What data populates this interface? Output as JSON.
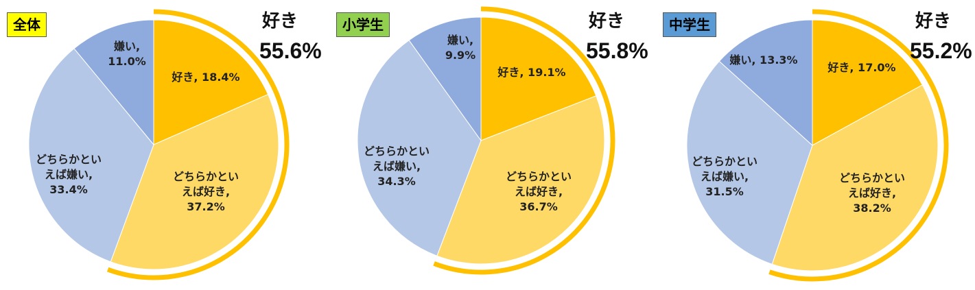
{
  "colors": {
    "like": "#FFC000",
    "somewhat_like": "#FFD966",
    "somewhat_dislike": "#B4C7E7",
    "dislike": "#8FAADC",
    "ring": "#FFC000"
  },
  "chart_data": [
    {
      "type": "pie",
      "badge": "全体",
      "badge_color": "#FFFF00",
      "like_heading": "好き",
      "like_total": "55.6%",
      "slices": [
        {
          "label_lines": [
            "好き, 18.4%"
          ],
          "value": 18.4,
          "color_key": "like"
        },
        {
          "label_lines": [
            "どちらかとい",
            "えば好き,",
            "37.2%"
          ],
          "value": 37.2,
          "color_key": "somewhat_like"
        },
        {
          "label_lines": [
            "どちらかとい",
            "えば嫌い,",
            "33.4%"
          ],
          "value": 33.4,
          "color_key": "somewhat_dislike"
        },
        {
          "label_lines": [
            "嫌い,",
            "11.0%"
          ],
          "value": 11.0,
          "color_key": "dislike"
        }
      ]
    },
    {
      "type": "pie",
      "badge": "小学生",
      "badge_color": "#92D050",
      "like_heading": "好き",
      "like_total": "55.8%",
      "slices": [
        {
          "label_lines": [
            "好き, 19.1%"
          ],
          "value": 19.1,
          "color_key": "like"
        },
        {
          "label_lines": [
            "どちらかとい",
            "えば好き,",
            "36.7%"
          ],
          "value": 36.7,
          "color_key": "somewhat_like"
        },
        {
          "label_lines": [
            "どちらかとい",
            "えば嫌い,",
            "34.3%"
          ],
          "value": 34.3,
          "color_key": "somewhat_dislike"
        },
        {
          "label_lines": [
            "嫌い,",
            "9.9%"
          ],
          "value": 9.9,
          "color_key": "dislike"
        }
      ]
    },
    {
      "type": "pie",
      "badge": "中学生",
      "badge_color": "#5B9BD5",
      "like_heading": "好き",
      "like_total": "55.2%",
      "slices": [
        {
          "label_lines": [
            "好き, 17.0%"
          ],
          "value": 17.0,
          "color_key": "like"
        },
        {
          "label_lines": [
            "どちらかとい",
            "えば好き,",
            "38.2%"
          ],
          "value": 38.2,
          "color_key": "somewhat_like"
        },
        {
          "label_lines": [
            "どちらかとい",
            "えば嫌い,",
            "31.5%"
          ],
          "value": 31.5,
          "color_key": "somewhat_dislike"
        },
        {
          "label_lines": [
            "嫌い, 13.3%"
          ],
          "value": 13.3,
          "color_key": "dislike"
        }
      ]
    }
  ]
}
